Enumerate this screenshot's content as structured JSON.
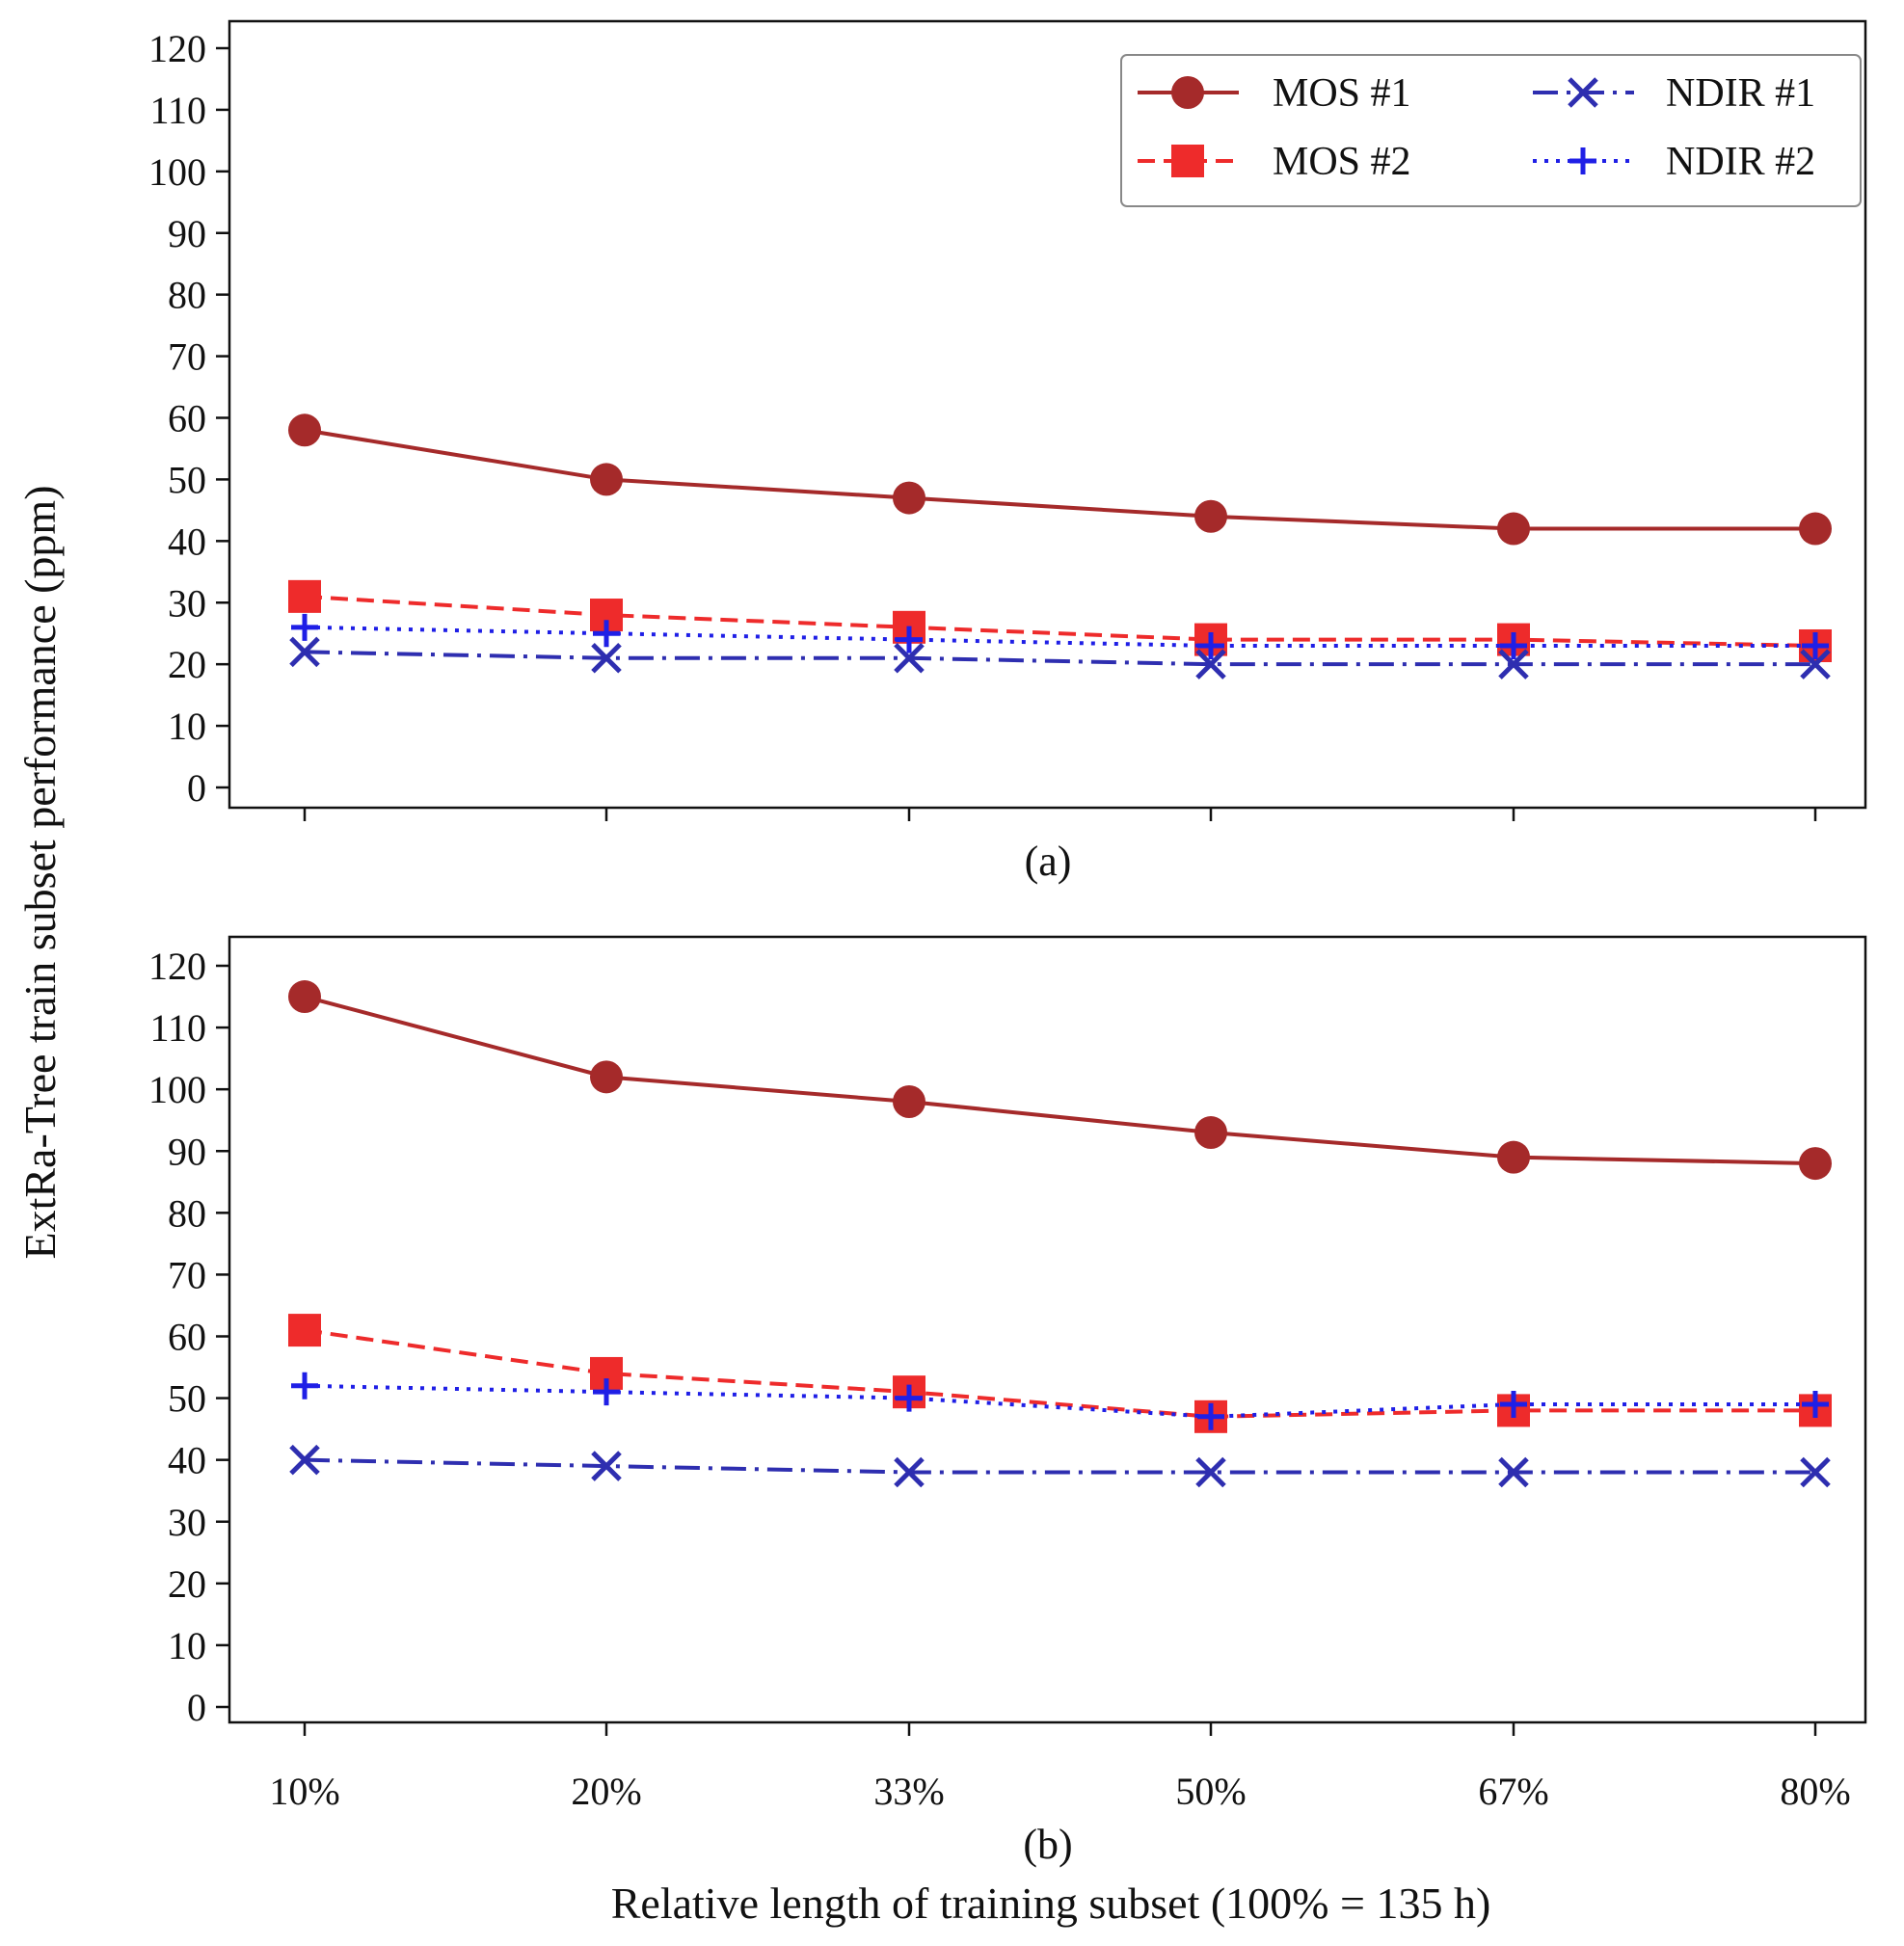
{
  "chart_data": [
    {
      "type": "line",
      "panel_label": "(a)",
      "categories": [
        "10%",
        "20%",
        "33%",
        "50%",
        "67%",
        "80%"
      ],
      "ylim": [
        0,
        120
      ],
      "yticks": [
        0,
        10,
        20,
        30,
        40,
        50,
        60,
        70,
        80,
        90,
        100,
        110,
        120
      ],
      "legend_position": "top-right",
      "series": [
        {
          "name": "MOS #1",
          "color": "#a52a2a",
          "marker": "circle",
          "dash": "solid",
          "values": [
            58,
            50,
            47,
            44,
            42,
            42
          ]
        },
        {
          "name": "MOS #2",
          "color": "#ee2b2b",
          "marker": "square",
          "dash": "dashed",
          "values": [
            31,
            28,
            26,
            24,
            24,
            23
          ]
        },
        {
          "name": "NDIR #1",
          "color": "#2e2eb0",
          "marker": "x",
          "dash": "dashdot",
          "values": [
            22,
            21,
            21,
            20,
            20,
            20
          ]
        },
        {
          "name": "NDIR #2",
          "color": "#1f1fe6",
          "marker": "plus",
          "dash": "dotted",
          "values": [
            26,
            25,
            24,
            23,
            23,
            23
          ]
        }
      ]
    },
    {
      "type": "line",
      "panel_label": "(b)",
      "categories": [
        "10%",
        "20%",
        "33%",
        "50%",
        "67%",
        "80%"
      ],
      "ylim": [
        0,
        120
      ],
      "yticks": [
        0,
        10,
        20,
        30,
        40,
        50,
        60,
        70,
        80,
        90,
        100,
        110,
        120
      ],
      "series": [
        {
          "name": "MOS #1",
          "color": "#a52a2a",
          "marker": "circle",
          "dash": "solid",
          "values": [
            115,
            102,
            98,
            93,
            89,
            88
          ]
        },
        {
          "name": "MOS #2",
          "color": "#ee2b2b",
          "marker": "square",
          "dash": "dashed",
          "values": [
            61,
            54,
            51,
            47,
            48,
            48
          ]
        },
        {
          "name": "NDIR #1",
          "color": "#2e2eb0",
          "marker": "x",
          "dash": "dashdot",
          "values": [
            40,
            39,
            38,
            38,
            38,
            38
          ]
        },
        {
          "name": "NDIR #2",
          "color": "#1f1fe6",
          "marker": "plus",
          "dash": "dotted",
          "values": [
            52,
            51,
            50,
            47,
            49,
            49
          ]
        }
      ]
    }
  ],
  "ylabel": "ExtRa-Tree train subset performance (ppm)",
  "xlabel": "Relative length of training subset (100% = 135 h)"
}
